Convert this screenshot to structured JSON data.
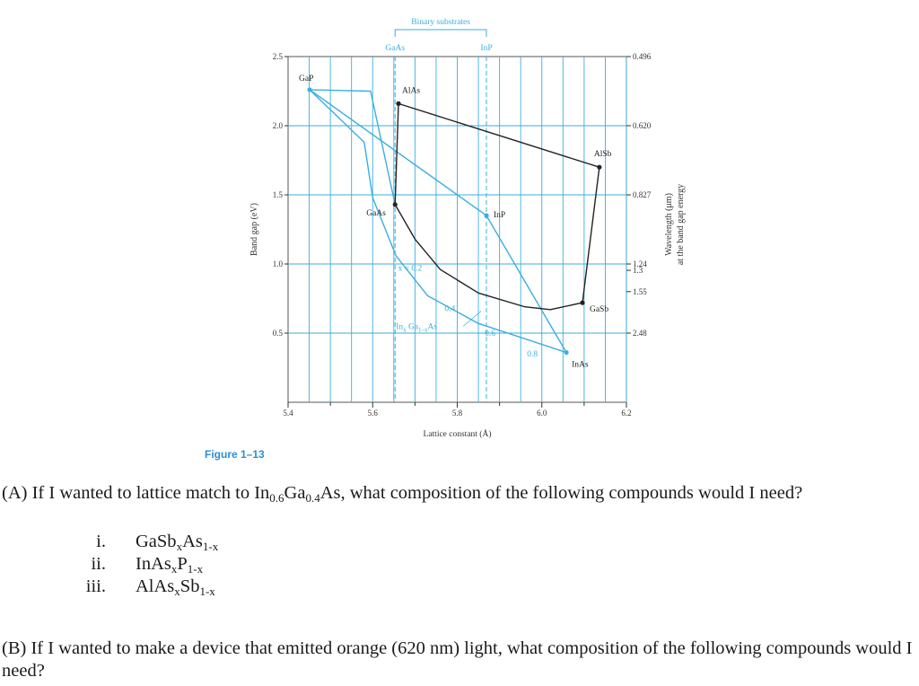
{
  "chart_data": {
    "type": "scatter",
    "xlabel": "Lattice constant (Å)",
    "ylabel": "Band gap (eV)",
    "y2label_line1": "Wavelength (μm)",
    "y2label_line2": "at the band gap energy",
    "xlim": [
      5.4,
      6.2
    ],
    "ylim": [
      0.0,
      2.5
    ],
    "x_ticks": [
      "5.4",
      "5.6",
      "5.8",
      "6.0",
      "6.2"
    ],
    "y_ticks": [
      "0.5",
      "1.0",
      "1.5",
      "2.0",
      "2.5"
    ],
    "y2_ticks": [
      {
        "label": "0.496",
        "energy": 2.5
      },
      {
        "label": "0.620",
        "energy": 2.0
      },
      {
        "label": "0.827",
        "energy": 1.5
      },
      {
        "label": "1.24",
        "energy": 1.0
      },
      {
        "label": "1.3",
        "energy": 0.954
      },
      {
        "label": "1.55",
        "energy": 0.8
      },
      {
        "label": "2.48",
        "energy": 0.5
      }
    ],
    "binary_label": "Binary substrates",
    "binary_substrates": [
      {
        "label": "GaAs",
        "x": 5.653
      },
      {
        "label": "InP",
        "x": 5.869
      }
    ],
    "points": [
      {
        "label": "GaP",
        "x": 5.451,
        "y": 2.26,
        "color": "blue"
      },
      {
        "label": "AlAs",
        "x": 5.661,
        "y": 2.16,
        "color": "black"
      },
      {
        "label": "AlSb",
        "x": 6.136,
        "y": 1.7,
        "color": "black"
      },
      {
        "label": "GaAs",
        "x": 5.653,
        "y": 1.43,
        "color": "black"
      },
      {
        "label": "InP",
        "x": 5.869,
        "y": 1.35,
        "color": "blue"
      },
      {
        "label": "GaSb",
        "x": 6.096,
        "y": 0.72,
        "color": "black"
      },
      {
        "label": "InAs",
        "x": 6.058,
        "y": 0.36,
        "color": "blue"
      }
    ],
    "series": [
      {
        "color": "blue",
        "points": [
          [
            5.451,
            2.26
          ],
          [
            5.869,
            1.35
          ]
        ]
      },
      {
        "color": "blue",
        "points": [
          [
            5.451,
            2.26
          ],
          [
            5.58,
            1.88
          ],
          [
            5.6,
            1.48
          ],
          [
            5.655,
            1.06
          ],
          [
            5.73,
            0.77
          ],
          [
            5.85,
            0.57
          ],
          [
            6.058,
            0.36
          ]
        ]
      },
      {
        "color": "blue",
        "points": [
          [
            5.451,
            2.26
          ],
          [
            5.595,
            2.25
          ],
          [
            5.653,
            1.43
          ]
        ]
      },
      {
        "color": "blue",
        "points": [
          [
            5.869,
            1.35
          ],
          [
            6.058,
            0.36
          ]
        ]
      },
      {
        "color": "black",
        "points": [
          [
            5.661,
            2.16
          ],
          [
            6.136,
            1.7
          ],
          [
            6.096,
            0.72
          ]
        ]
      },
      {
        "color": "black",
        "points": [
          [
            5.661,
            2.16
          ],
          [
            5.653,
            1.43
          ]
        ]
      },
      {
        "color": "black",
        "points": [
          [
            5.653,
            1.43
          ],
          [
            5.7,
            1.18
          ],
          [
            5.76,
            0.96
          ],
          [
            5.85,
            0.79
          ],
          [
            5.96,
            0.69
          ],
          [
            6.02,
            0.67
          ],
          [
            6.096,
            0.72
          ]
        ]
      }
    ],
    "annotations": [
      {
        "text": "x = 0.2",
        "x": 5.66,
        "y": 0.95
      },
      {
        "text": "0.4",
        "x": 5.77,
        "y": 0.66
      },
      {
        "text": "0.6",
        "x": 5.865,
        "y": 0.48
      },
      {
        "text": "0.8",
        "x": 5.965,
        "y": 0.33
      },
      {
        "text": "In",
        "sub1": "x",
        "mid": " Ga",
        "sub2": "1–x",
        "end": "As",
        "x": 5.655,
        "y": 0.53
      }
    ]
  },
  "figure_label": "Figure 1–13",
  "question_a": {
    "prefix": "(A) If I wanted to lattice match to In",
    "sub1": "0.6",
    "mid": "Ga",
    "sub2": "0.4",
    "suffix": "As, what composition of the following compounds would I need?"
  },
  "options": [
    {
      "num": "i.",
      "p1": "GaSb",
      "s1": "x",
      "p2": "As",
      "s2": "1-x"
    },
    {
      "num": "ii.",
      "p1": "InAs",
      "s1": "x",
      "p2": "P",
      "s2": "1-x"
    },
    {
      "num": "iii.",
      "p1": "AlAs",
      "s1": "x",
      "p2": "Sb",
      "s2": "1-x"
    }
  ],
  "question_b": "(B) If I wanted to make a device that emitted orange (620 nm) light, what composition of the following compounds would I need?"
}
